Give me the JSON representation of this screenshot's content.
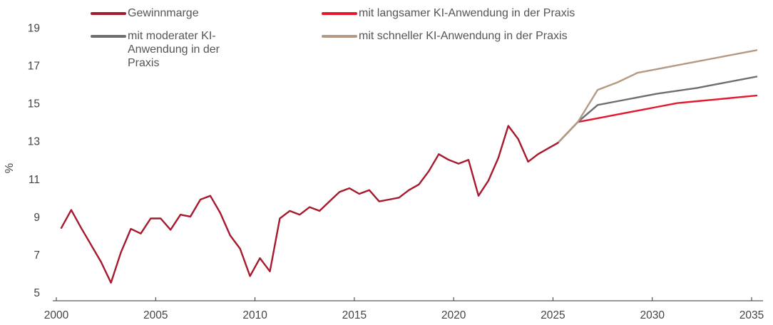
{
  "chart_data": {
    "type": "line",
    "title": "",
    "xlabel": "",
    "ylabel": "%",
    "xlim": [
      2000,
      2035
    ],
    "ylim": [
      5,
      20
    ],
    "x_ticks": [
      2000,
      2005,
      2010,
      2015,
      2020,
      2025,
      2030,
      2035
    ],
    "y_ticks": [
      5,
      7,
      9,
      11,
      13,
      15,
      17,
      19
    ],
    "grid": false,
    "legend_position": "top",
    "series": [
      {
        "name": "Gewinnmarge",
        "color": "#a6192e",
        "points": [
          [
            2000.25,
            8.4
          ],
          [
            2000.75,
            9.35
          ],
          [
            2001.25,
            8.4
          ],
          [
            2001.75,
            7.5
          ],
          [
            2002.25,
            6.6
          ],
          [
            2002.75,
            5.5
          ],
          [
            2003.25,
            7.1
          ],
          [
            2003.75,
            8.35
          ],
          [
            2004.25,
            8.1
          ],
          [
            2004.75,
            8.9
          ],
          [
            2005.25,
            8.9
          ],
          [
            2005.75,
            8.3
          ],
          [
            2006.25,
            9.1
          ],
          [
            2006.75,
            9.0
          ],
          [
            2007.25,
            9.9
          ],
          [
            2007.75,
            10.1
          ],
          [
            2008.25,
            9.2
          ],
          [
            2008.75,
            8.0
          ],
          [
            2009.25,
            7.3
          ],
          [
            2009.75,
            5.85
          ],
          [
            2010.25,
            6.8
          ],
          [
            2010.75,
            6.1
          ],
          [
            2011.25,
            8.9
          ],
          [
            2011.75,
            9.3
          ],
          [
            2012.25,
            9.1
          ],
          [
            2012.75,
            9.5
          ],
          [
            2013.25,
            9.3
          ],
          [
            2013.75,
            9.8
          ],
          [
            2014.25,
            10.3
          ],
          [
            2014.75,
            10.5
          ],
          [
            2015.25,
            10.2
          ],
          [
            2015.75,
            10.4
          ],
          [
            2016.25,
            9.8
          ],
          [
            2016.75,
            9.9
          ],
          [
            2017.25,
            10.0
          ],
          [
            2017.75,
            10.4
          ],
          [
            2018.25,
            10.7
          ],
          [
            2018.75,
            11.4
          ],
          [
            2019.25,
            12.3
          ],
          [
            2019.75,
            12.0
          ],
          [
            2020.25,
            11.8
          ],
          [
            2020.75,
            12.0
          ],
          [
            2021.25,
            10.1
          ],
          [
            2021.75,
            10.9
          ],
          [
            2022.25,
            12.1
          ],
          [
            2022.75,
            13.8
          ],
          [
            2023.25,
            13.1
          ],
          [
            2023.75,
            11.9
          ],
          [
            2024.25,
            12.3
          ],
          [
            2024.75,
            12.6
          ],
          [
            2025.25,
            12.9
          ]
        ]
      },
      {
        "name": "mit langsamer KI-Anwendung in der Praxis",
        "color": "#e3182d",
        "points": [
          [
            2025.25,
            12.9
          ],
          [
            2026.25,
            14.0
          ],
          [
            2027.25,
            14.2
          ],
          [
            2028.25,
            14.4
          ],
          [
            2029.25,
            14.6
          ],
          [
            2030.25,
            14.8
          ],
          [
            2031.25,
            15.0
          ],
          [
            2032.25,
            15.1
          ],
          [
            2033.25,
            15.2
          ],
          [
            2034.25,
            15.3
          ],
          [
            2035.25,
            15.4
          ]
        ]
      },
      {
        "name": "mit moderater KI-Anwendung in der Praxis",
        "color": "#6d6e71",
        "points": [
          [
            2025.25,
            12.9
          ],
          [
            2026.25,
            14.0
          ],
          [
            2027.25,
            14.9
          ],
          [
            2028.25,
            15.1
          ],
          [
            2029.25,
            15.3
          ],
          [
            2030.25,
            15.5
          ],
          [
            2031.25,
            15.65
          ],
          [
            2032.25,
            15.8
          ],
          [
            2033.25,
            16.0
          ],
          [
            2034.25,
            16.2
          ],
          [
            2035.25,
            16.4
          ]
        ]
      },
      {
        "name": "mit schneller KI-Anwendung in der Praxis",
        "color": "#b49a82",
        "points": [
          [
            2025.25,
            12.9
          ],
          [
            2026.25,
            14.0
          ],
          [
            2027.25,
            15.7
          ],
          [
            2028.25,
            16.1
          ],
          [
            2029.25,
            16.6
          ],
          [
            2030.25,
            16.8
          ],
          [
            2031.25,
            17.0
          ],
          [
            2032.25,
            17.2
          ],
          [
            2033.25,
            17.4
          ],
          [
            2034.25,
            17.6
          ],
          [
            2035.25,
            17.8
          ]
        ]
      }
    ]
  },
  "legend": {
    "items": [
      {
        "label": "Gewinnmarge",
        "color": "#a6192e"
      },
      {
        "label": "mit langsamer KI-Anwendung in der Praxis",
        "color": "#e3182d"
      },
      {
        "label": "mit moderater KI-Anwendung in der Praxis",
        "color": "#6d6e71"
      },
      {
        "label": "mit schneller KI-Anwendung in der Praxis",
        "color": "#b49a82"
      }
    ]
  }
}
